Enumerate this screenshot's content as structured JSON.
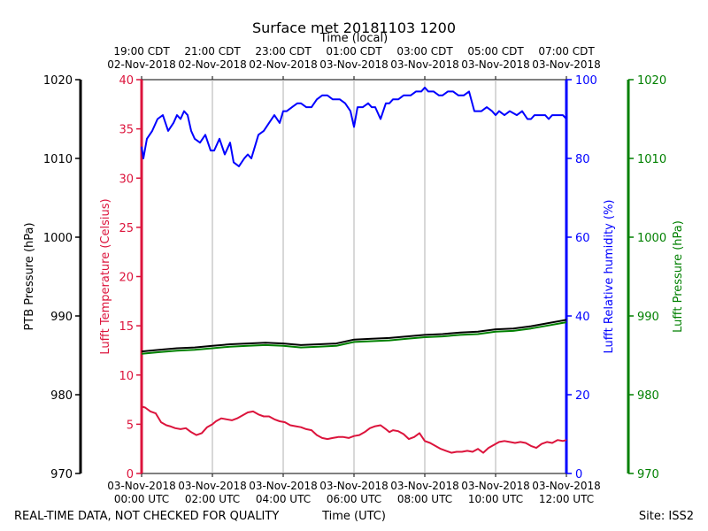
{
  "chart_data": {
    "type": "line",
    "title": "Surface met 20181103 1200",
    "footer_left": "REAL-TIME DATA, NOT CHECKED FOR QUALITY",
    "footer_site": "Site: ISS2",
    "colors": {
      "temperature": "#dc143c",
      "humidity": "#0000ff",
      "ptb_pressure": "#000000",
      "lufft_pressure": "#008000",
      "grid": "#b0b0b0"
    },
    "x_bottom": {
      "label": "Time (UTC)",
      "range_hours": [
        0,
        12
      ],
      "ticks": [
        {
          "h": 0,
          "l1": "03-Nov-2018",
          "l2": "00:00 UTC"
        },
        {
          "h": 2,
          "l1": "03-Nov-2018",
          "l2": "02:00 UTC"
        },
        {
          "h": 4,
          "l1": "03-Nov-2018",
          "l2": "04:00 UTC"
        },
        {
          "h": 6,
          "l1": "03-Nov-2018",
          "l2": "06:00 UTC"
        },
        {
          "h": 8,
          "l1": "03-Nov-2018",
          "l2": "08:00 UTC"
        },
        {
          "h": 10,
          "l1": "03-Nov-2018",
          "l2": "10:00 UTC"
        },
        {
          "h": 12,
          "l1": "03-Nov-2018",
          "l2": "12:00 UTC"
        }
      ]
    },
    "x_top": {
      "label": "Time (local)",
      "ticks": [
        {
          "h": 0,
          "l1": "19:00 CDT",
          "l2": "02-Nov-2018"
        },
        {
          "h": 2,
          "l1": "21:00 CDT",
          "l2": "02-Nov-2018"
        },
        {
          "h": 4,
          "l1": "23:00 CDT",
          "l2": "02-Nov-2018"
        },
        {
          "h": 6,
          "l1": "01:00 CDT",
          "l2": "03-Nov-2018"
        },
        {
          "h": 8,
          "l1": "03:00 CDT",
          "l2": "03-Nov-2018"
        },
        {
          "h": 10,
          "l1": "05:00 CDT",
          "l2": "03-Nov-2018"
        },
        {
          "h": 12,
          "l1": "07:00 CDT",
          "l2": "03-Nov-2018"
        }
      ]
    },
    "axes": {
      "ptb_pressure": {
        "label": "PTB Pressure (hPa)",
        "range": [
          970,
          1020
        ],
        "ticks": [
          "970",
          "980",
          "990",
          "1000",
          "1010",
          "1020"
        ]
      },
      "temperature": {
        "label": "Lufft Temperature (Celsius)",
        "range": [
          0,
          40
        ],
        "ticks": [
          "0",
          "5",
          "10",
          "15",
          "20",
          "25",
          "30",
          "35",
          "40"
        ]
      },
      "humidity": {
        "label": "Lufft Relative humidity (%)",
        "range": [
          0,
          100
        ],
        "ticks": [
          "0",
          "20",
          "40",
          "60",
          "80",
          "100"
        ]
      },
      "lufft_pressure": {
        "label": "Lufft Pressure (hPa)",
        "range": [
          970,
          1020
        ],
        "ticks": [
          "970",
          "980",
          "990",
          "1000",
          "1010",
          "1020"
        ]
      }
    },
    "series": [
      {
        "name": "Lufft Relative humidity (%)",
        "key": "humidity",
        "axis": "humidity",
        "x": [
          0,
          0.05,
          0.15,
          0.3,
          0.45,
          0.6,
          0.75,
          0.9,
          1.0,
          1.1,
          1.2,
          1.3,
          1.4,
          1.5,
          1.65,
          1.8,
          1.95,
          2.05,
          2.2,
          2.35,
          2.5,
          2.6,
          2.75,
          2.9,
          3.0,
          3.1,
          3.2,
          3.3,
          3.45,
          3.6,
          3.75,
          3.9,
          4.0,
          4.1,
          4.25,
          4.4,
          4.5,
          4.65,
          4.8,
          4.95,
          5.1,
          5.25,
          5.4,
          5.5,
          5.6,
          5.75,
          5.9,
          6.0,
          6.1,
          6.25,
          6.4,
          6.5,
          6.6,
          6.75,
          6.9,
          7.0,
          7.1,
          7.25,
          7.4,
          7.5,
          7.6,
          7.75,
          7.9,
          8.0,
          8.1,
          8.25,
          8.4,
          8.5,
          8.65,
          8.8,
          8.95,
          9.1,
          9.25,
          9.4,
          9.5,
          9.6,
          9.75,
          9.9,
          10.0,
          10.1,
          10.25,
          10.4,
          10.6,
          10.75,
          10.9,
          11.0,
          11.1,
          11.25,
          11.4,
          11.5,
          11.6,
          11.75,
          11.9,
          12.0
        ],
        "y": [
          83,
          80,
          85,
          87,
          90,
          91,
          87,
          89,
          91,
          90,
          92,
          91,
          87,
          85,
          84,
          86,
          82,
          82,
          85,
          81,
          84,
          79,
          78,
          80,
          81,
          80,
          83,
          86,
          87,
          89,
          91,
          89,
          92,
          92,
          93,
          94,
          94,
          93,
          93,
          95,
          96,
          96,
          95,
          95,
          95,
          94,
          92,
          88,
          93,
          93,
          94,
          93,
          93,
          90,
          94,
          94,
          95,
          95,
          96,
          96,
          96,
          97,
          97,
          98,
          97,
          97,
          96,
          96,
          97,
          97,
          96,
          96,
          97,
          92,
          92,
          92,
          93,
          92,
          91,
          92,
          91,
          92,
          91,
          92,
          90,
          90,
          91,
          91,
          91,
          90,
          91,
          91,
          91,
          90
        ]
      },
      {
        "name": "Lufft Temperature (Celsius)",
        "key": "temperature",
        "axis": "temperature",
        "x": [
          0,
          0.1,
          0.25,
          0.4,
          0.55,
          0.7,
          0.8,
          0.95,
          1.1,
          1.25,
          1.4,
          1.55,
          1.7,
          1.85,
          2.0,
          2.1,
          2.25,
          2.4,
          2.55,
          2.7,
          2.85,
          3.0,
          3.15,
          3.3,
          3.45,
          3.6,
          3.75,
          3.9,
          4.05,
          4.2,
          4.35,
          4.5,
          4.65,
          4.8,
          4.95,
          5.1,
          5.25,
          5.4,
          5.55,
          5.7,
          5.85,
          6.0,
          6.15,
          6.3,
          6.45,
          6.6,
          6.75,
          6.9,
          7.0,
          7.1,
          7.25,
          7.4,
          7.55,
          7.7,
          7.85,
          8.0,
          8.15,
          8.3,
          8.45,
          8.6,
          8.75,
          8.9,
          9.05,
          9.2,
          9.35,
          9.5,
          9.65,
          9.8,
          9.95,
          10.1,
          10.25,
          10.4,
          10.55,
          10.7,
          10.85,
          11.0,
          11.15,
          11.3,
          11.45,
          11.6,
          11.75,
          11.9,
          12.0
        ],
        "y": [
          6.8,
          6.7,
          6.3,
          6.1,
          5.2,
          4.9,
          4.8,
          4.6,
          4.5,
          4.6,
          4.2,
          3.9,
          4.1,
          4.7,
          5.0,
          5.3,
          5.6,
          5.5,
          5.4,
          5.6,
          5.9,
          6.2,
          6.3,
          6.0,
          5.8,
          5.8,
          5.5,
          5.3,
          5.2,
          4.9,
          4.8,
          4.7,
          4.5,
          4.4,
          3.9,
          3.6,
          3.5,
          3.6,
          3.7,
          3.7,
          3.6,
          3.8,
          3.9,
          4.2,
          4.6,
          4.8,
          4.9,
          4.5,
          4.2,
          4.4,
          4.3,
          4.0,
          3.5,
          3.7,
          4.1,
          3.3,
          3.1,
          2.8,
          2.5,
          2.3,
          2.1,
          2.2,
          2.2,
          2.3,
          2.2,
          2.5,
          2.1,
          2.6,
          2.9,
          3.2,
          3.3,
          3.2,
          3.1,
          3.2,
          3.1,
          2.8,
          2.6,
          3.0,
          3.2,
          3.1,
          3.4,
          3.3,
          3.4
        ]
      },
      {
        "name": "PTB Pressure (hPa)",
        "key": "ptb_pressure",
        "axis": "ptb_pressure",
        "x": [
          0,
          0.5,
          1.0,
          1.5,
          2.0,
          2.5,
          3.0,
          3.5,
          4.0,
          4.5,
          5.0,
          5.5,
          6.0,
          6.5,
          7.0,
          7.5,
          8.0,
          8.5,
          9.0,
          9.5,
          10.0,
          10.5,
          11.0,
          11.5,
          12.0
        ],
        "y": [
          985.5,
          985.7,
          985.9,
          986.0,
          986.2,
          986.4,
          986.5,
          986.6,
          986.5,
          986.3,
          986.4,
          986.5,
          987.0,
          987.1,
          987.2,
          987.4,
          987.6,
          987.7,
          987.9,
          988.0,
          988.3,
          988.4,
          988.7,
          989.1,
          989.5
        ]
      },
      {
        "name": "Lufft Pressure (hPa)",
        "key": "lufft_pressure",
        "axis": "lufft_pressure",
        "x": [
          0,
          0.5,
          1.0,
          1.5,
          2.0,
          2.5,
          3.0,
          3.5,
          4.0,
          4.5,
          5.0,
          5.5,
          6.0,
          6.5,
          7.0,
          7.5,
          8.0,
          8.5,
          9.0,
          9.5,
          10.0,
          10.5,
          11.0,
          11.5,
          12.0
        ],
        "y": [
          985.2,
          985.4,
          985.6,
          985.7,
          985.9,
          986.1,
          986.2,
          986.3,
          986.2,
          986.0,
          986.1,
          986.2,
          986.7,
          986.8,
          986.9,
          987.1,
          987.3,
          987.4,
          987.6,
          987.7,
          988.0,
          988.1,
          988.4,
          988.8,
          989.2
        ]
      }
    ]
  }
}
